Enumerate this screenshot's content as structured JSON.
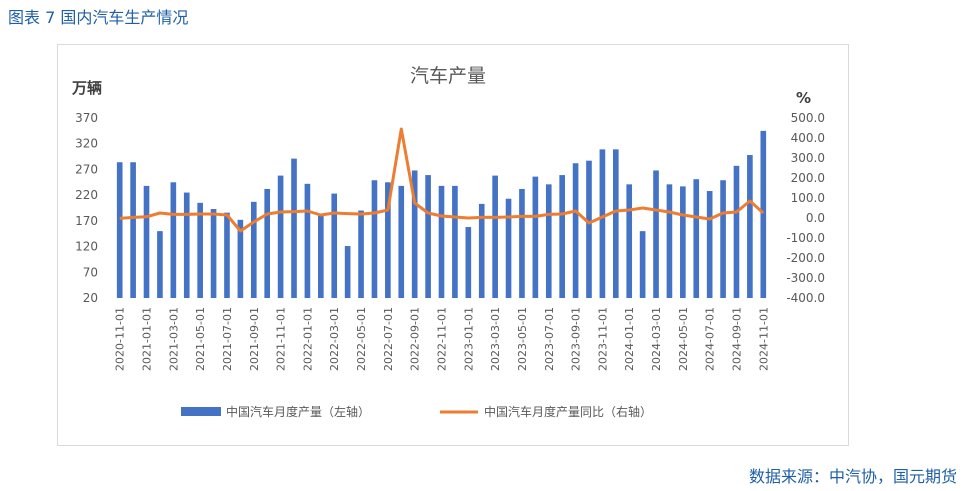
{
  "figure_title": "图表 7 国内汽车生产情况",
  "source": "数据来源：中汽协，国元期货",
  "chart_data": {
    "type": "bar+line",
    "title": "汽车产量",
    "y_left_unit": "万辆",
    "y_right_unit": "%",
    "y_left_range": [
      20,
      370
    ],
    "y_left_ticks": [
      "20",
      "70",
      "120",
      "170",
      "220",
      "270",
      "320",
      "370"
    ],
    "y_right_range": [
      -400,
      500
    ],
    "y_right_ticks": [
      "-400.0",
      "-300.0",
      "-200.0",
      "-100.0",
      "0.0",
      "100.0",
      "200.0",
      "300.0",
      "400.0",
      "500.0"
    ],
    "categories": [
      "2020-11-01",
      "2020-12-01",
      "2021-01-01",
      "2021-02-01",
      "2021-03-01",
      "2021-04-01",
      "2021-05-01",
      "2021-06-01",
      "2021-07-01",
      "2021-08-01",
      "2021-09-01",
      "2021-10-01",
      "2021-11-01",
      "2021-12-01",
      "2022-01-01",
      "2022-02-01",
      "2022-03-01",
      "2022-04-01",
      "2022-05-01",
      "2022-06-01",
      "2022-07-01",
      "2022-08-01",
      "2022-09-01",
      "2022-10-01",
      "2022-11-01",
      "2022-12-01",
      "2023-01-01",
      "2023-02-01",
      "2023-03-01",
      "2023-04-01",
      "2023-05-01",
      "2023-06-01",
      "2023-07-01",
      "2023-08-01",
      "2023-09-01",
      "2023-10-01",
      "2023-11-01",
      "2023-12-01",
      "2024-01-01",
      "2024-02-01",
      "2024-03-01",
      "2024-04-01",
      "2024-05-01",
      "2024-06-01",
      "2024-07-01",
      "2024-08-01",
      "2024-09-01",
      "2024-10-01",
      "2024-11-01"
    ],
    "x_tick_labels": [
      "2020-11-01",
      "2021-01-01",
      "2021-03-01",
      "2021-05-01",
      "2021-07-01",
      "2021-09-01",
      "2021-11-01",
      "2022-01-01",
      "2022-03-01",
      "2022-05-01",
      "2022-07-01",
      "2022-09-01",
      "2022-11-01",
      "2023-01-01",
      "2023-03-01",
      "2023-05-01",
      "2023-07-01",
      "2023-09-01",
      "2023-11-01",
      "2024-01-01",
      "2024-03-01",
      "2024-05-01",
      "2024-07-01",
      "2024-09-01",
      "2024-11-01"
    ],
    "series": [
      {
        "name": "中国汽车月度产量（左轴）",
        "type": "bar",
        "axis": "left",
        "color": "#4472c4",
        "values": [
          284,
          284,
          238,
          150,
          245,
          225,
          205,
          193,
          186,
          172,
          207,
          232,
          258,
          291,
          242,
          181,
          223,
          121,
          190,
          249,
          245,
          238,
          268,
          259,
          238,
          238,
          158,
          203,
          258,
          213,
          232,
          256,
          241,
          259,
          282,
          287,
          309,
          309,
          241,
          150,
          268,
          241,
          237,
          251,
          228,
          249,
          277,
          298,
          345
        ]
      },
      {
        "name": "中国汽车月度产量同比（右轴）",
        "type": "line",
        "axis": "right",
        "color": "#ed7d31",
        "values": [
          -2,
          3,
          6,
          25,
          18,
          18,
          20,
          20,
          15,
          -65,
          -20,
          20,
          30,
          32,
          35,
          15,
          25,
          22,
          20,
          25,
          40,
          445,
          75,
          25,
          10,
          5,
          0,
          3,
          3,
          5,
          8,
          8,
          18,
          20,
          35,
          -25,
          5,
          35,
          40,
          50,
          40,
          30,
          15,
          5,
          -5,
          25,
          30,
          85,
          25
        ]
      }
    ],
    "legend_position": "bottom",
    "grid": "none"
  }
}
